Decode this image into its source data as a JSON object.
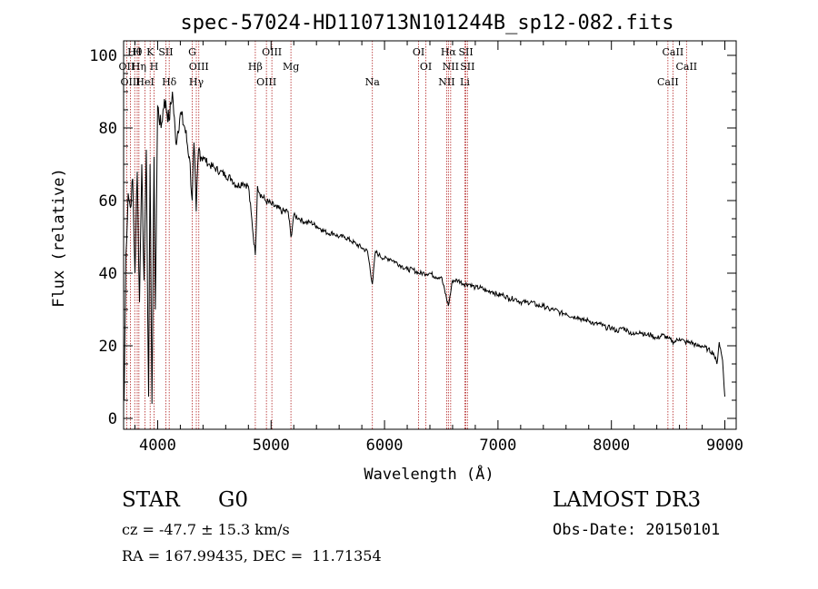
{
  "chart_data": {
    "type": "line",
    "title": "spec-57024-HD110713N101244B_sp12-082.fits",
    "xlabel": "Wavelength (Å)",
    "ylabel": "Flux (relative)",
    "xlim": [
      3700,
      9100
    ],
    "ylim": [
      -3,
      104
    ],
    "x_ticks": [
      4000,
      5000,
      6000,
      7000,
      8000,
      9000
    ],
    "y_ticks": [
      0,
      20,
      40,
      60,
      80,
      100
    ],
    "grid": false,
    "series": [
      {
        "name": "spectrum",
        "x": [
          3705,
          3720,
          3740,
          3760,
          3780,
          3800,
          3820,
          3840,
          3860,
          3880,
          3900,
          3920,
          3933,
          3950,
          3968,
          3980,
          4000,
          4030,
          4060,
          4100,
          4130,
          4160,
          4200,
          4240,
          4280,
          4305,
          4320,
          4340,
          4360,
          4400,
          4450,
          4500,
          4550,
          4600,
          4650,
          4700,
          4750,
          4800,
          4861,
          4880,
          4900,
          4950,
          5000,
          5050,
          5100,
          5150,
          5175,
          5200,
          5250,
          5300,
          5350,
          5400,
          5450,
          5500,
          5550,
          5600,
          5650,
          5700,
          5750,
          5800,
          5850,
          5893,
          5920,
          5950,
          6000,
          6050,
          6100,
          6150,
          6200,
          6250,
          6300,
          6350,
          6400,
          6450,
          6500,
          6563,
          6600,
          6650,
          6700,
          6750,
          6800,
          6850,
          6900,
          6950,
          7000,
          7050,
          7100,
          7150,
          7200,
          7250,
          7300,
          7350,
          7400,
          7450,
          7500,
          7550,
          7600,
          7650,
          7700,
          7750,
          7800,
          7850,
          7900,
          7950,
          8000,
          8050,
          8100,
          8150,
          8200,
          8250,
          8300,
          8350,
          8400,
          8450,
          8500,
          8550,
          8600,
          8650,
          8700,
          8750,
          8800,
          8850,
          8900,
          8930,
          8950,
          8980,
          9000
        ],
        "y": [
          5,
          45,
          62,
          58,
          66,
          40,
          68,
          32,
          70,
          38,
          74,
          6,
          70,
          4,
          72,
          30,
          86,
          80,
          88,
          82,
          90,
          76,
          84,
          80,
          72,
          60,
          76,
          57,
          74,
          72,
          70,
          69,
          68,
          67,
          66,
          64,
          65,
          64,
          45,
          64,
          62,
          60,
          59,
          58,
          57,
          57,
          50,
          56,
          55,
          54,
          54,
          53,
          52,
          51,
          51,
          50,
          50,
          49,
          48,
          47,
          46,
          37,
          46,
          45,
          44,
          44,
          43,
          42,
          41,
          41,
          40,
          40,
          40,
          39,
          39,
          31,
          38,
          38,
          37,
          37,
          36,
          36,
          35,
          35,
          34,
          34,
          33,
          33,
          32,
          32,
          32,
          31,
          31,
          30,
          30,
          29,
          29,
          28,
          28,
          27,
          27,
          26,
          26,
          25,
          25,
          24,
          25,
          24,
          23,
          24,
          23,
          23,
          22,
          23,
          22,
          21,
          22,
          21,
          21,
          20,
          20,
          19,
          18,
          15,
          21,
          16,
          6
        ]
      }
    ],
    "lines": [
      {
        "label": "Hθ",
        "x": 3798
      },
      {
        "label": "OII",
        "x": 3727
      },
      {
        "label": "OIII",
        "x": 3760
      },
      {
        "label": "H",
        "x": 3820
      },
      {
        "label": "Hη",
        "x": 3835
      },
      {
        "label": "HeI",
        "x": 3889
      },
      {
        "label": "K",
        "x": 3934
      },
      {
        "label": "H",
        "x": 3969
      },
      {
        "label": "Hδ",
        "x": 4102
      },
      {
        "label": "SII",
        "x": 4072
      },
      {
        "label": "OIII",
        "x": 4363
      },
      {
        "label": "Hγ",
        "x": 4341
      },
      {
        "label": "G",
        "x": 4305
      },
      {
        "label": "Hβ",
        "x": 4861
      },
      {
        "label": "OIII",
        "x": 4959
      },
      {
        "label": "OIII",
        "x": 5007
      },
      {
        "label": "Mg",
        "x": 5175
      },
      {
        "label": "Na",
        "x": 5893
      },
      {
        "label": "OI",
        "x": 6300
      },
      {
        "label": "OI",
        "x": 6364
      },
      {
        "label": "NII",
        "x": 6548
      },
      {
        "label": "Hα",
        "x": 6563
      },
      {
        "label": "NII",
        "x": 6583
      },
      {
        "label": "Li",
        "x": 6708
      },
      {
        "label": "SII",
        "x": 6717
      },
      {
        "label": "SII",
        "x": 6731
      },
      {
        "label": "CaII",
        "x": 8498
      },
      {
        "label": "CaII",
        "x": 8542
      },
      {
        "label": "CaII",
        "x": 8662
      }
    ]
  },
  "info": {
    "class": "STAR",
    "subclass": "G0",
    "survey": "LAMOST DR3",
    "cz": "cz = -47.7 ± 15.3 km/s",
    "obs_date": "Obs-Date: 20150101",
    "radec": "RA = 167.99435, DEC =  11.71354"
  },
  "colors": {
    "axis": "#000000",
    "spectrum": "#000000",
    "line_marker": "#b22222"
  }
}
